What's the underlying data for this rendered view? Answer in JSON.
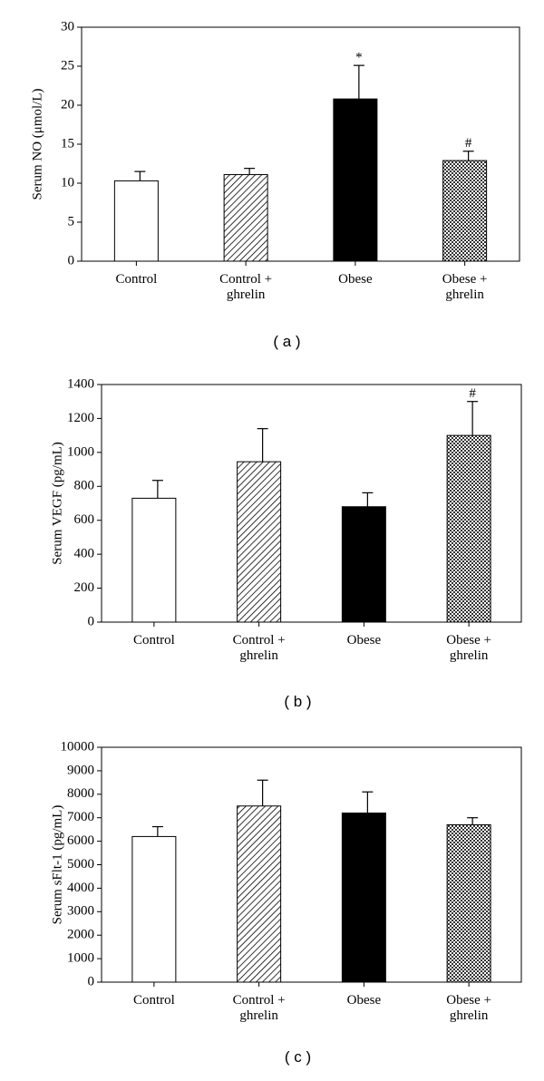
{
  "chart_data": [
    {
      "type": "bar",
      "label": "( a )",
      "ylabel": "Serum NO (μmol/L)",
      "categories": [
        "Control",
        "Control +\nghrelin",
        "Obese",
        "Obese +\nghrelin"
      ],
      "values": [
        10.3,
        11.1,
        20.8,
        12.9
      ],
      "errors": [
        1.2,
        0.8,
        4.3,
        1.2
      ],
      "markers": [
        null,
        null,
        "*",
        "#"
      ],
      "patterns": [
        "white",
        "diagonal",
        "black",
        "checker"
      ],
      "ylim": [
        0,
        30
      ],
      "yticks": [
        0,
        5,
        10,
        15,
        20,
        25,
        30
      ]
    },
    {
      "type": "bar",
      "label": "( b )",
      "ylabel": "Serum VEGF (pg/mL)",
      "categories": [
        "Control",
        "Control +\nghrelin",
        "Obese",
        "Obese +\nghrelin"
      ],
      "values": [
        730,
        945,
        680,
        1100
      ],
      "errors": [
        105,
        195,
        82,
        200
      ],
      "markers": [
        null,
        null,
        null,
        "#"
      ],
      "patterns": [
        "white",
        "diagonal",
        "black",
        "checker"
      ],
      "ylim": [
        0,
        1400
      ],
      "yticks": [
        0,
        200,
        400,
        600,
        800,
        1000,
        1200,
        1400
      ]
    },
    {
      "type": "bar",
      "label": "( c )",
      "ylabel": "Serum sFlt-1 (pg/mL)",
      "categories": [
        "Control",
        "Control +\nghrelin",
        "Obese",
        "Obese +\nghrelin"
      ],
      "values": [
        6200,
        7500,
        7200,
        6700
      ],
      "errors": [
        420,
        1100,
        900,
        300
      ],
      "patterns": [
        "white",
        "diagonal",
        "black",
        "checker"
      ],
      "ylim": [
        0,
        10000
      ],
      "yticks": [
        0,
        1000,
        2000,
        3000,
        4000,
        5000,
        6000,
        7000,
        8000,
        9000,
        10000
      ]
    }
  ]
}
